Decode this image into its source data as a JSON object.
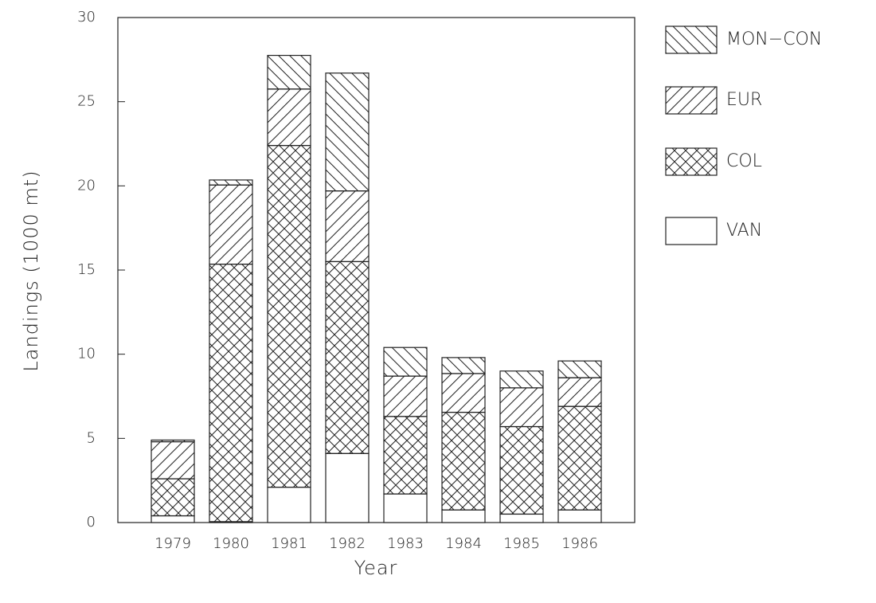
{
  "chart_data": {
    "type": "stacked-bar",
    "x_label": "Year",
    "y_label": "Landings (1000 mt)",
    "categories": [
      "1979",
      "1980",
      "1981",
      "1982",
      "1983",
      "1984",
      "1985",
      "1986"
    ],
    "series": [
      {
        "name": "VAN",
        "color": "#222222",
        "hatch": "none",
        "values": [
          0.4,
          0.05,
          2.1,
          4.1,
          1.7,
          0.75,
          0.5,
          0.75
        ]
      },
      {
        "name": "COL",
        "color": "#222222",
        "hatch": "cross",
        "values": [
          2.2,
          15.3,
          20.3,
          11.4,
          4.6,
          5.8,
          5.2,
          6.15
        ]
      },
      {
        "name": "EUR",
        "color": "#222222",
        "hatch": "forward",
        "values": [
          2.2,
          4.7,
          3.35,
          4.2,
          2.4,
          2.3,
          2.3,
          1.7
        ]
      },
      {
        "name": "MON−CON",
        "color": "#222222",
        "hatch": "back",
        "values": [
          0.1,
          0.3,
          2.0,
          7.0,
          1.7,
          0.95,
          1.0,
          1.0
        ]
      }
    ],
    "ylim": [
      0,
      30
    ],
    "yticks": [
      0,
      5,
      10,
      15,
      20,
      25,
      30
    ],
    "grid": false
  }
}
